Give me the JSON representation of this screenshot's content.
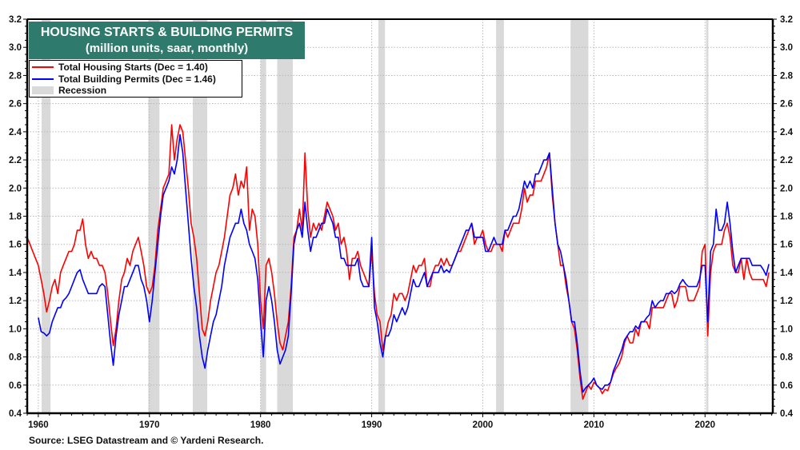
{
  "chart_data": {
    "type": "line",
    "title": "HOUSING STARTS & BUILDING PERMITS",
    "subtitle": "(million units, saar, monthly)",
    "xlabel": "",
    "ylabel": "",
    "xlim": [
      1959.0,
      2026.1
    ],
    "ylim": [
      0.4,
      3.2
    ],
    "y_ticks": [
      "0.4",
      "0.6",
      "0.8",
      "1.0",
      "1.2",
      "1.4",
      "1.6",
      "1.8",
      "2.0",
      "2.2",
      "2.4",
      "2.6",
      "2.8",
      "3.0",
      "3.2"
    ],
    "y_tick_values": [
      0.4,
      0.6,
      0.8,
      1.0,
      1.2,
      1.4,
      1.6,
      1.8,
      2.0,
      2.2,
      2.4,
      2.6,
      2.8,
      3.0,
      3.2
    ],
    "x_ticks": [
      "1960",
      "1970",
      "1980",
      "1990",
      "2000",
      "2010",
      "2020"
    ],
    "x_tick_values": [
      1960,
      1970,
      1980,
      1990,
      2000,
      2010,
      2020
    ],
    "grid": true,
    "legend_position": "top-left",
    "legend": [
      {
        "label": "Total Housing Starts (Dec = 1.40)",
        "color": "#ff0000",
        "kind": "line"
      },
      {
        "label": "Total Building Permits  (Dec = 1.46)",
        "color": "#0000ff",
        "kind": "line"
      },
      {
        "label": "Recession",
        "color": "#d9d9d9",
        "kind": "band"
      }
    ],
    "recessions": [
      [
        1960.3,
        1961.1
      ],
      [
        1969.9,
        1970.9
      ],
      [
        1973.9,
        1975.2
      ],
      [
        1980.0,
        1980.5
      ],
      [
        1981.5,
        1982.9
      ],
      [
        1990.6,
        1991.2
      ],
      [
        2001.2,
        2001.9
      ],
      [
        2007.9,
        2009.5
      ],
      [
        2020.1,
        2020.3
      ]
    ],
    "series": [
      {
        "name": "Total Housing Starts",
        "color": "#ff0000",
        "x_start": 1959.0,
        "x_step": 0.25,
        "values": [
          1.65,
          1.6,
          1.55,
          1.5,
          1.45,
          1.35,
          1.25,
          1.12,
          1.2,
          1.3,
          1.35,
          1.25,
          1.4,
          1.45,
          1.5,
          1.55,
          1.55,
          1.6,
          1.7,
          1.7,
          1.78,
          1.6,
          1.5,
          1.55,
          1.5,
          1.5,
          1.45,
          1.45,
          1.4,
          1.25,
          1.05,
          0.88,
          1.0,
          1.2,
          1.35,
          1.4,
          1.5,
          1.45,
          1.55,
          1.6,
          1.65,
          1.55,
          1.45,
          1.3,
          1.25,
          1.3,
          1.45,
          1.7,
          1.85,
          2.0,
          2.05,
          2.1,
          2.45,
          2.2,
          2.35,
          2.45,
          2.4,
          2.2,
          2.0,
          1.75,
          1.65,
          1.5,
          1.25,
          1.0,
          0.95,
          1.05,
          1.2,
          1.3,
          1.4,
          1.45,
          1.55,
          1.65,
          1.8,
          1.95,
          2.0,
          2.1,
          1.95,
          2.05,
          2.0,
          2.15,
          1.7,
          1.85,
          1.8,
          1.6,
          1.2,
          1.0,
          1.45,
          1.5,
          1.4,
          1.25,
          1.05,
          0.9,
          0.85,
          0.95,
          1.05,
          1.3,
          1.65,
          1.7,
          1.85,
          1.7,
          2.25,
          1.85,
          1.65,
          1.75,
          1.7,
          1.75,
          1.7,
          1.8,
          1.9,
          1.85,
          1.8,
          1.7,
          1.75,
          1.6,
          1.65,
          1.55,
          1.35,
          1.5,
          1.5,
          1.55,
          1.45,
          1.4,
          1.35,
          1.3,
          1.55,
          1.25,
          1.1,
          1.05,
          0.85,
          0.95,
          1.05,
          1.1,
          1.25,
          1.2,
          1.25,
          1.25,
          1.2,
          1.25,
          1.35,
          1.45,
          1.4,
          1.45,
          1.45,
          1.5,
          1.3,
          1.3,
          1.4,
          1.45,
          1.45,
          1.5,
          1.45,
          1.5,
          1.45,
          1.45,
          1.5,
          1.55,
          1.55,
          1.6,
          1.65,
          1.7,
          1.75,
          1.6,
          1.65,
          1.65,
          1.7,
          1.6,
          1.55,
          1.55,
          1.6,
          1.6,
          1.6,
          1.55,
          1.7,
          1.65,
          1.7,
          1.75,
          1.75,
          1.75,
          1.85,
          2.0,
          1.9,
          1.95,
          1.95,
          2.05,
          2.05,
          2.05,
          2.1,
          2.15,
          2.25,
          1.95,
          1.75,
          1.6,
          1.45,
          1.45,
          1.3,
          1.2,
          1.05,
          1.0,
          0.85,
          0.65,
          0.5,
          0.55,
          0.6,
          0.57,
          0.62,
          0.6,
          0.58,
          0.54,
          0.57,
          0.56,
          0.62,
          0.68,
          0.72,
          0.75,
          0.8,
          0.9,
          0.95,
          0.9,
          0.9,
          1.0,
          0.95,
          1.05,
          1.05,
          1.05,
          1.0,
          1.15,
          1.15,
          1.15,
          1.15,
          1.15,
          1.2,
          1.25,
          1.25,
          1.15,
          1.2,
          1.3,
          1.3,
          1.3,
          1.2,
          1.2,
          1.2,
          1.25,
          1.3,
          1.55,
          1.6,
          0.95,
          1.4,
          1.55,
          1.6,
          1.6,
          1.6,
          1.7,
          1.75,
          1.65,
          1.45,
          1.4,
          1.4,
          1.5,
          1.35,
          1.5,
          1.4,
          1.35,
          1.35,
          1.35,
          1.35,
          1.35,
          1.3,
          1.4
        ]
      },
      {
        "name": "Total Building Permits",
        "color": "#0000ff",
        "x_start": 1960.0,
        "x_step": 0.25,
        "values": [
          1.08,
          0.98,
          0.97,
          0.95,
          0.97,
          1.05,
          1.1,
          1.15,
          1.15,
          1.2,
          1.22,
          1.25,
          1.3,
          1.35,
          1.4,
          1.42,
          1.35,
          1.3,
          1.25,
          1.25,
          1.25,
          1.25,
          1.3,
          1.32,
          1.3,
          1.1,
          0.9,
          0.74,
          0.95,
          1.1,
          1.2,
          1.3,
          1.3,
          1.35,
          1.4,
          1.45,
          1.45,
          1.35,
          1.3,
          1.2,
          1.05,
          1.2,
          1.4,
          1.6,
          1.8,
          1.95,
          2.0,
          2.05,
          2.15,
          2.1,
          2.2,
          2.38,
          2.25,
          2.0,
          1.75,
          1.5,
          1.3,
          1.15,
          0.95,
          0.8,
          0.72,
          0.85,
          0.95,
          1.05,
          1.1,
          1.2,
          1.3,
          1.45,
          1.55,
          1.65,
          1.7,
          1.75,
          1.75,
          1.85,
          1.75,
          1.7,
          1.6,
          1.55,
          1.5,
          1.35,
          1.05,
          0.8,
          1.2,
          1.3,
          1.2,
          1.05,
          0.85,
          0.75,
          0.8,
          0.85,
          0.95,
          1.25,
          1.6,
          1.7,
          1.75,
          1.65,
          1.9,
          1.7,
          1.55,
          1.65,
          1.65,
          1.7,
          1.75,
          1.75,
          1.85,
          1.8,
          1.75,
          1.65,
          1.65,
          1.5,
          1.5,
          1.45,
          1.45,
          1.45,
          1.45,
          1.5,
          1.35,
          1.3,
          1.3,
          1.3,
          1.65,
          1.15,
          1.05,
          0.9,
          0.8,
          0.95,
          0.95,
          1.0,
          1.1,
          1.05,
          1.1,
          1.15,
          1.1,
          1.15,
          1.25,
          1.35,
          1.3,
          1.3,
          1.35,
          1.4,
          1.3,
          1.35,
          1.4,
          1.4,
          1.4,
          1.45,
          1.4,
          1.42,
          1.4,
          1.45,
          1.5,
          1.55,
          1.6,
          1.65,
          1.7,
          1.7,
          1.75,
          1.65,
          1.65,
          1.65,
          1.65,
          1.55,
          1.55,
          1.6,
          1.65,
          1.6,
          1.6,
          1.6,
          1.7,
          1.7,
          1.75,
          1.8,
          1.8,
          1.85,
          1.95,
          2.05,
          2.0,
          2.05,
          2.0,
          2.1,
          2.1,
          2.15,
          2.2,
          2.2,
          2.25,
          2.0,
          1.75,
          1.6,
          1.55,
          1.45,
          1.35,
          1.2,
          1.05,
          1.05,
          0.9,
          0.7,
          0.55,
          0.58,
          0.6,
          0.62,
          0.65,
          0.6,
          0.58,
          0.57,
          0.6,
          0.6,
          0.62,
          0.7,
          0.75,
          0.8,
          0.85,
          0.92,
          0.95,
          0.98,
          0.98,
          1.02,
          1.0,
          1.05,
          1.05,
          1.08,
          1.1,
          1.2,
          1.15,
          1.18,
          1.2,
          1.2,
          1.25,
          1.25,
          1.27,
          1.25,
          1.27,
          1.32,
          1.35,
          1.32,
          1.3,
          1.3,
          1.3,
          1.3,
          1.35,
          1.45,
          1.45,
          1.05,
          1.55,
          1.6,
          1.85,
          1.7,
          1.7,
          1.75,
          1.9,
          1.75,
          1.55,
          1.4,
          1.45,
          1.5,
          1.5,
          1.5,
          1.5,
          1.45,
          1.45,
          1.45,
          1.45,
          1.42,
          1.38,
          1.46
        ]
      }
    ]
  },
  "source": "Source: LSEG Datastream and © Yardeni Research."
}
